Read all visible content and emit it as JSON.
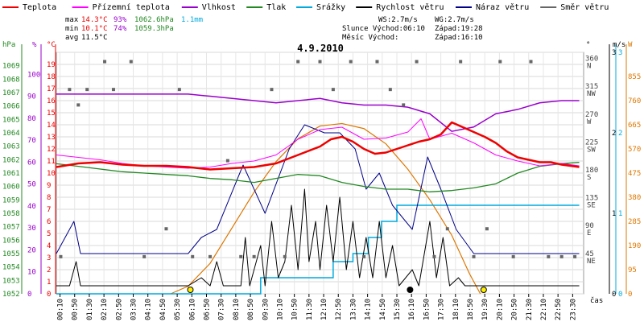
{
  "chart_data": {
    "type": "line",
    "title": "4.9.2010",
    "legend": [
      {
        "label": "Teplota",
        "color": "#ee0000"
      },
      {
        "label": "Přízemní teplota",
        "color": "#ff00ff"
      },
      {
        "label": "Vlhkost",
        "color": "#9900cc"
      },
      {
        "label": "Tlak",
        "color": "#228822"
      },
      {
        "label": "Srážky",
        "color": "#00aadd"
      },
      {
        "label": "Rychlost větru",
        "color": "#000000"
      },
      {
        "label": "Náraz větru",
        "color": "#000088"
      },
      {
        "label": "Směr větru",
        "color": "#666666"
      }
    ],
    "stats": {
      "max_label": "max",
      "min_label": "min",
      "avg_label": "avg",
      "max_temp": "14.3°C",
      "max_hum": "93%",
      "max_press": "1062.6hPa",
      "max_rain": "1.1mm",
      "min_temp": "10.1°C",
      "min_hum": "74%",
      "min_press": "1059.3hPa",
      "avg_temp": "11.5°C"
    },
    "info": {
      "ws": "WS:2.7m/s",
      "wg": "WG:2.7m/s",
      "sun": "Slunce Východ:06:10",
      "sunset": "Západ:19:28",
      "moon": "Měsíc  Východ:",
      "moonset": "Západ:16:10"
    },
    "left_axis_labels": {
      "hpa": "hPa",
      "pct": "%",
      "deg": "°C"
    },
    "right_axis_labels": {
      "deg": "°",
      "ms": "m/s",
      "w": "W"
    },
    "xlabel": "čas",
    "pressure_ticks": [
      1069,
      1068,
      1067,
      1066,
      1065,
      1064,
      1063,
      1062,
      1061,
      1060,
      1059,
      1058,
      1057,
      1056,
      1055,
      1054,
      1053,
      1052
    ],
    "humidity_ticks": [
      100,
      90,
      80,
      70,
      60,
      50,
      40,
      30,
      20,
      10,
      0
    ],
    "temp_ticks": [
      19,
      18,
      17,
      16,
      15,
      14,
      13,
      12,
      11,
      10,
      9,
      8,
      7,
      6,
      5,
      4,
      3,
      2,
      1,
      0
    ],
    "dir_ticks": [
      {
        "deg": "360",
        "dir": "N"
      },
      {
        "deg": "315",
        "dir": "NW"
      },
      {
        "deg": "270",
        "dir": "W"
      },
      {
        "deg": "225",
        "dir": "SW"
      },
      {
        "deg": "180",
        "dir": "S"
      },
      {
        "deg": "135",
        "dir": "SE"
      },
      {
        "deg": "90",
        "dir": "E"
      },
      {
        "deg": "45",
        "dir": "NE"
      }
    ],
    "wind_ticks": [
      3,
      2,
      1,
      0
    ],
    "rain_ticks": [
      3,
      2,
      1,
      0
    ],
    "solar_ticks": [
      855,
      760,
      665,
      570,
      475,
      380,
      285,
      190,
      95,
      0
    ],
    "time_labels": [
      "00:10",
      "00:50",
      "01:30",
      "02:10",
      "02:50",
      "03:30",
      "04:10",
      "04:50",
      "05:30",
      "06:10",
      "06:50",
      "07:30",
      "08:10",
      "08:50",
      "09:30",
      "10:10",
      "10:50",
      "11:30",
      "12:10",
      "12:50",
      "13:30",
      "14:10",
      "14:50",
      "15:30",
      "16:10",
      "16:50",
      "17:30",
      "18:10",
      "18:50",
      "19:30",
      "20:10",
      "20:50",
      "21:30",
      "22:10",
      "22:50",
      "23:30"
    ],
    "temperature": [
      [
        0,
        10.5
      ],
      [
        1,
        10.8
      ],
      [
        2,
        10.9
      ],
      [
        3,
        10.7
      ],
      [
        4,
        10.6
      ],
      [
        5,
        10.6
      ],
      [
        6,
        10.5
      ],
      [
        7,
        10.3
      ],
      [
        8,
        10.4
      ],
      [
        9,
        10.5
      ],
      [
        10,
        10.8
      ],
      [
        11,
        11.5
      ],
      [
        12,
        12.2
      ],
      [
        12.5,
        12.8
      ],
      [
        13,
        13.0
      ],
      [
        13.5,
        12.6
      ],
      [
        14,
        12.0
      ],
      [
        14.5,
        11.6
      ],
      [
        15,
        11.7
      ],
      [
        15.5,
        12.0
      ],
      [
        16,
        12.3
      ],
      [
        16.5,
        12.6
      ],
      [
        17,
        12.8
      ],
      [
        17.5,
        13.2
      ],
      [
        18,
        14.2
      ],
      [
        18.5,
        13.8
      ],
      [
        19,
        13.4
      ],
      [
        19.5,
        13.0
      ],
      [
        20,
        12.5
      ],
      [
        20.5,
        11.8
      ],
      [
        21,
        11.3
      ],
      [
        21.5,
        11.1
      ],
      [
        22,
        10.9
      ],
      [
        22.5,
        10.9
      ],
      [
        23,
        10.7
      ],
      [
        23.8,
        10.5
      ]
    ],
    "ground_temp": [
      [
        0,
        11.5
      ],
      [
        1,
        11.3
      ],
      [
        2,
        11.1
      ],
      [
        3,
        10.8
      ],
      [
        4,
        10.6
      ],
      [
        5,
        10.5
      ],
      [
        6,
        10.4
      ],
      [
        7,
        10.5
      ],
      [
        8,
        10.8
      ],
      [
        9,
        11.0
      ],
      [
        10,
        11.5
      ],
      [
        11,
        12.8
      ],
      [
        12,
        13.6
      ],
      [
        13,
        13.8
      ],
      [
        14,
        12.8
      ],
      [
        15,
        12.9
      ],
      [
        16,
        13.4
      ],
      [
        16.6,
        14.5
      ],
      [
        17,
        12.8
      ],
      [
        18,
        13.3
      ],
      [
        19,
        12.5
      ],
      [
        20,
        11.5
      ],
      [
        21,
        11.0
      ],
      [
        22,
        10.6
      ],
      [
        23,
        10.8
      ],
      [
        23.8,
        10.6
      ]
    ],
    "humidity": [
      [
        0,
        91
      ],
      [
        2,
        91
      ],
      [
        4,
        91
      ],
      [
        6,
        91
      ],
      [
        7,
        90
      ],
      [
        8,
        89
      ],
      [
        9,
        88
      ],
      [
        10,
        87
      ],
      [
        11,
        88
      ],
      [
        12,
        89
      ],
      [
        13,
        87
      ],
      [
        14,
        86
      ],
      [
        15,
        86
      ],
      [
        16,
        85
      ],
      [
        17,
        82
      ],
      [
        18,
        74
      ],
      [
        19,
        76
      ],
      [
        20,
        82
      ],
      [
        21,
        84
      ],
      [
        22,
        87
      ],
      [
        23,
        88
      ],
      [
        23.8,
        88
      ]
    ],
    "pressure": [
      [
        0,
        1061.7
      ],
      [
        1,
        1061.5
      ],
      [
        2,
        1061.3
      ],
      [
        3,
        1061.1
      ],
      [
        4,
        1061.0
      ],
      [
        5,
        1060.9
      ],
      [
        6,
        1060.8
      ],
      [
        7,
        1060.6
      ],
      [
        8,
        1060.5
      ],
      [
        9,
        1060.3
      ],
      [
        10,
        1060.6
      ],
      [
        11,
        1060.9
      ],
      [
        12,
        1060.8
      ],
      [
        13,
        1060.3
      ],
      [
        14,
        1060.0
      ],
      [
        15,
        1059.8
      ],
      [
        16,
        1059.8
      ],
      [
        17,
        1059.6
      ],
      [
        18,
        1059.7
      ],
      [
        19,
        1059.9
      ],
      [
        20,
        1060.2
      ],
      [
        21,
        1061.0
      ],
      [
        22,
        1061.5
      ],
      [
        23,
        1061.7
      ],
      [
        23.8,
        1061.8
      ]
    ],
    "rain_cumulative": [
      [
        0,
        0
      ],
      [
        9.2,
        0
      ],
      [
        9.3,
        0.2
      ],
      [
        10.5,
        0.2
      ],
      [
        12.6,
        0.4
      ],
      [
        13.5,
        0.5
      ],
      [
        14.2,
        0.7
      ],
      [
        14.8,
        0.9
      ],
      [
        15.5,
        1.1
      ],
      [
        23.8,
        1.1
      ]
    ],
    "solar": [
      [
        5.2,
        0
      ],
      [
        6,
        30
      ],
      [
        7,
        120
      ],
      [
        8,
        260
      ],
      [
        9,
        400
      ],
      [
        10,
        520
      ],
      [
        11,
        610
      ],
      [
        12,
        660
      ],
      [
        13,
        670
      ],
      [
        14,
        650
      ],
      [
        15,
        590
      ],
      [
        16,
        490
      ],
      [
        17,
        370
      ],
      [
        18,
        230
      ],
      [
        18.8,
        80
      ],
      [
        19.3,
        0
      ]
    ],
    "wind_speed": [
      [
        0,
        0.1
      ],
      [
        0.6,
        0.1
      ],
      [
        0.9,
        0.4
      ],
      [
        1.1,
        0.1
      ],
      [
        2,
        0.1
      ],
      [
        4,
        0.1
      ],
      [
        6,
        0.1
      ],
      [
        6.6,
        0.2
      ],
      [
        7,
        0.1
      ],
      [
        7.3,
        0.4
      ],
      [
        7.6,
        0.1
      ],
      [
        8.4,
        0.1
      ],
      [
        8.6,
        0.7
      ],
      [
        8.8,
        0.1
      ],
      [
        9.3,
        0.6
      ],
      [
        9.5,
        0.1
      ],
      [
        9.8,
        0.9
      ],
      [
        10.1,
        0.2
      ],
      [
        10.4,
        0.4
      ],
      [
        10.7,
        1.1
      ],
      [
        11.0,
        0.3
      ],
      [
        11.3,
        1.3
      ],
      [
        11.5,
        0.4
      ],
      [
        11.8,
        0.9
      ],
      [
        12.0,
        0.3
      ],
      [
        12.3,
        1.1
      ],
      [
        12.6,
        0.4
      ],
      [
        12.9,
        1.2
      ],
      [
        13.2,
        0.3
      ],
      [
        13.5,
        0.9
      ],
      [
        13.8,
        0.2
      ],
      [
        14.1,
        0.7
      ],
      [
        14.4,
        0.2
      ],
      [
        14.7,
        0.9
      ],
      [
        15.0,
        0.2
      ],
      [
        15.3,
        0.6
      ],
      [
        15.6,
        0.1
      ],
      [
        16.2,
        0.3
      ],
      [
        16.5,
        0.1
      ],
      [
        17.0,
        0.9
      ],
      [
        17.3,
        0.2
      ],
      [
        17.6,
        0.7
      ],
      [
        17.9,
        0.1
      ],
      [
        18.3,
        0.2
      ],
      [
        18.6,
        0.1
      ],
      [
        20,
        0.1
      ],
      [
        22,
        0.1
      ],
      [
        23.8,
        0.1
      ]
    ],
    "wind_gust": [
      [
        0,
        0.5
      ],
      [
        0.8,
        0.9
      ],
      [
        1.1,
        0.5
      ],
      [
        2,
        0.5
      ],
      [
        6,
        0.5
      ],
      [
        6.6,
        0.7
      ],
      [
        7.3,
        0.8
      ],
      [
        8.5,
        1.6
      ],
      [
        9.5,
        1.0
      ],
      [
        10.6,
        1.8
      ],
      [
        11.3,
        2.1
      ],
      [
        12.2,
        2.0
      ],
      [
        12.9,
        2.0
      ],
      [
        13.6,
        1.8
      ],
      [
        14.1,
        1.3
      ],
      [
        14.7,
        1.5
      ],
      [
        15.3,
        1.1
      ],
      [
        16.2,
        0.8
      ],
      [
        16.9,
        1.7
      ],
      [
        17.5,
        1.3
      ],
      [
        18.2,
        0.8
      ],
      [
        19.0,
        0.5
      ],
      [
        22,
        0.5
      ],
      [
        23.8,
        0.5
      ]
    ],
    "wind_direction": [
      [
        0.2,
        45
      ],
      [
        0.6,
        315
      ],
      [
        1.0,
        290
      ],
      [
        1.4,
        315
      ],
      [
        2.2,
        360
      ],
      [
        2.6,
        315
      ],
      [
        3.4,
        360
      ],
      [
        4.0,
        45
      ],
      [
        5.0,
        90
      ],
      [
        5.6,
        315
      ],
      [
        6.2,
        45
      ],
      [
        7.0,
        45
      ],
      [
        7.8,
        200
      ],
      [
        8.4,
        45
      ],
      [
        9.0,
        45
      ],
      [
        9.8,
        315
      ],
      [
        10.4,
        45
      ],
      [
        11.0,
        360
      ],
      [
        12.0,
        360
      ],
      [
        12.6,
        315
      ],
      [
        13.4,
        360
      ],
      [
        14.0,
        45
      ],
      [
        14.6,
        360
      ],
      [
        15.2,
        315
      ],
      [
        15.8,
        290
      ],
      [
        16.4,
        360
      ],
      [
        17.2,
        45
      ],
      [
        17.8,
        90
      ],
      [
        18.4,
        360
      ],
      [
        19.0,
        45
      ],
      [
        19.6,
        90
      ],
      [
        20.2,
        360
      ],
      [
        20.8,
        45
      ],
      [
        21.6,
        360
      ],
      [
        22.4,
        45
      ],
      [
        23.0,
        45
      ],
      [
        23.6,
        45
      ]
    ]
  }
}
